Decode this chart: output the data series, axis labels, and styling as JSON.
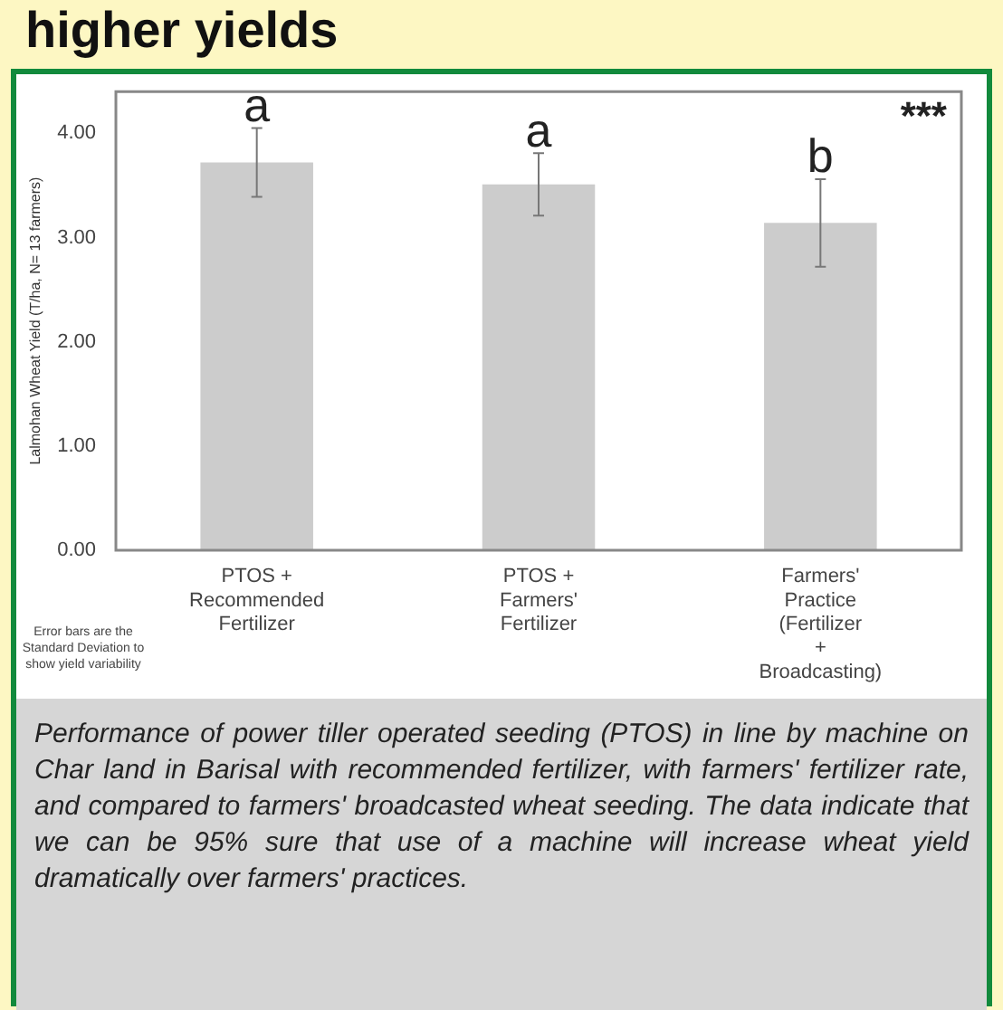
{
  "chart_data": {
    "type": "bar",
    "title": "higher yields",
    "ylabel": "Lalmohan Wheat Yield (T/ha, N= 13 farmers)",
    "categories": [
      "PTOS + Recommended Fertilizer",
      "PTOS + Farmers' Fertilizer",
      "Farmers' Practice (Fertilizer + Broadcasting)"
    ],
    "values": [
      3.72,
      3.51,
      3.14
    ],
    "errors": [
      0.33,
      0.3,
      0.42
    ],
    "color": "#cccccc",
    "ylim": [
      0,
      4.4
    ],
    "yticks": [
      {
        "value": 0,
        "label": "0.00"
      },
      {
        "value": 1,
        "label": "1.00"
      },
      {
        "value": 2,
        "label": "2.00"
      },
      {
        "value": 3,
        "label": "3.00"
      },
      {
        "value": 4,
        "label": "4.00"
      }
    ],
    "grid": false,
    "legend": false,
    "annotations": [
      {
        "text": "a",
        "x": "PTOS + Recommended Fertilizer",
        "y": 4.05
      },
      {
        "text": "a",
        "x": "PTOS + Farmers' Fertilizer",
        "y": 3.81
      },
      {
        "text": "b",
        "x": "Farmers' Practice (Fertilizer + Broadcasting)",
        "y": 3.56
      },
      "***",
      "Error bars are the Standard Deviation to show yield variability",
      "Performance of power tiller operated seeding (PTOS) in line by machine on Char land in Barisal with recommended fertilizer, with farmers' fertilizer rate, and compared to farmers' broadcasted wheat seeding. The data indicate that we can be 95% sure that use of a machine will increase wheat yield dramatically over farmers' practices."
    ]
  }
}
